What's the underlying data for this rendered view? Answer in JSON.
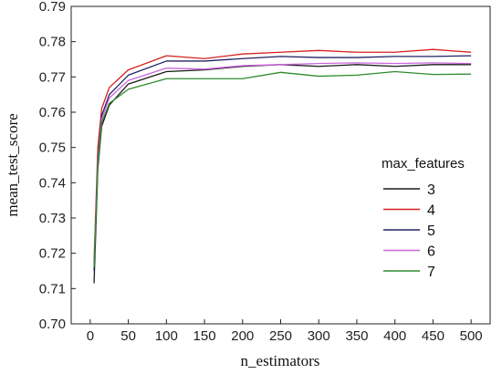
{
  "chart_data": {
    "type": "line",
    "title": "",
    "xlabel": "n_estimators",
    "ylabel": "mean_test_score",
    "xlim": [
      -25,
      525
    ],
    "ylim": [
      0.7,
      0.79
    ],
    "x_ticks": [
      0,
      50,
      100,
      150,
      200,
      250,
      300,
      350,
      400,
      450,
      500
    ],
    "y_ticks": [
      0.7,
      0.71,
      0.72,
      0.73,
      0.74,
      0.75,
      0.76,
      0.77,
      0.78,
      0.79
    ],
    "y_tick_labels": [
      "0.70",
      "0.71",
      "0.72",
      "0.73",
      "0.74",
      "0.75",
      "0.76",
      "0.77",
      "0.78",
      "0.79"
    ],
    "grid": false,
    "legend": {
      "title": "max_features",
      "placement": "right"
    },
    "x": [
      5,
      10,
      15,
      25,
      50,
      100,
      150,
      200,
      250,
      300,
      350,
      400,
      450,
      500
    ],
    "series": [
      {
        "name": "3",
        "color": "#1a1a1a",
        "values": [
          0.7115,
          0.744,
          0.756,
          0.762,
          0.768,
          0.7715,
          0.772,
          0.773,
          0.7735,
          0.773,
          0.7735,
          0.773,
          0.7735,
          0.7735
        ]
      },
      {
        "name": "4",
        "color": "#d62020",
        "values": [
          0.718,
          0.75,
          0.761,
          0.767,
          0.772,
          0.776,
          0.7752,
          0.7765,
          0.777,
          0.7775,
          0.777,
          0.777,
          0.7778,
          0.777
        ]
      },
      {
        "name": "5",
        "color": "#232363",
        "values": [
          0.715,
          0.747,
          0.759,
          0.765,
          0.7705,
          0.7745,
          0.7745,
          0.7752,
          0.7758,
          0.7755,
          0.7755,
          0.7758,
          0.7758,
          0.776
        ]
      },
      {
        "name": "6",
        "color": "#cc66dd",
        "values": [
          0.717,
          0.746,
          0.758,
          0.764,
          0.769,
          0.7725,
          0.7722,
          0.7732,
          0.7735,
          0.7738,
          0.774,
          0.7738,
          0.774,
          0.7738
        ]
      },
      {
        "name": "7",
        "color": "#2e8b2e",
        "values": [
          0.716,
          0.745,
          0.757,
          0.7625,
          0.7665,
          0.7695,
          0.7695,
          0.7695,
          0.7713,
          0.7702,
          0.7705,
          0.7715,
          0.7707,
          0.7708
        ]
      }
    ]
  }
}
